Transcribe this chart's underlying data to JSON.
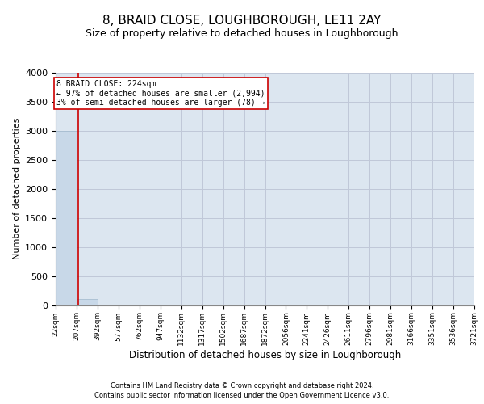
{
  "title": "8, BRAID CLOSE, LOUGHBOROUGH, LE11 2AY",
  "subtitle": "Size of property relative to detached houses in Loughborough",
  "xlabel": "Distribution of detached houses by size in Loughborough",
  "ylabel": "Number of detached properties",
  "bin_edges": [
    22,
    207,
    392,
    577,
    762,
    947,
    1132,
    1317,
    1502,
    1687,
    1872,
    2056,
    2241,
    2426,
    2611,
    2796,
    2981,
    3166,
    3351,
    3536,
    3721
  ],
  "bin_heights": [
    2994,
    100,
    0,
    0,
    0,
    0,
    0,
    0,
    0,
    0,
    0,
    0,
    0,
    0,
    0,
    0,
    0,
    0,
    0,
    0
  ],
  "bar_color": "#c8d8e8",
  "bar_edgecolor": "#a0b8cc",
  "property_size": 224,
  "annotation_line1": "8 BRAID CLOSE: 224sqm",
  "annotation_line2": "← 97% of detached houses are smaller (2,994)",
  "annotation_line3": "3% of semi-detached houses are larger (78) →",
  "vline_color": "#cc0000",
  "annotation_box_edgecolor": "#cc0000",
  "annotation_box_facecolor": "#ffffff",
  "ylim": [
    0,
    4000
  ],
  "yticks": [
    0,
    500,
    1000,
    1500,
    2000,
    2500,
    3000,
    3500,
    4000
  ],
  "grid_color": "#c0c8d8",
  "background_color": "#dce6f0",
  "footer_line1": "Contains HM Land Registry data © Crown copyright and database right 2024.",
  "footer_line2": "Contains public sector information licensed under the Open Government Licence v3.0.",
  "title_fontsize": 11,
  "subtitle_fontsize": 9,
  "ylabel_fontsize": 8,
  "xlabel_fontsize": 8.5,
  "tick_label_fontsize": 6.5,
  "ytick_fontsize": 8,
  "annotation_fontsize": 7,
  "footer_fontsize": 6
}
